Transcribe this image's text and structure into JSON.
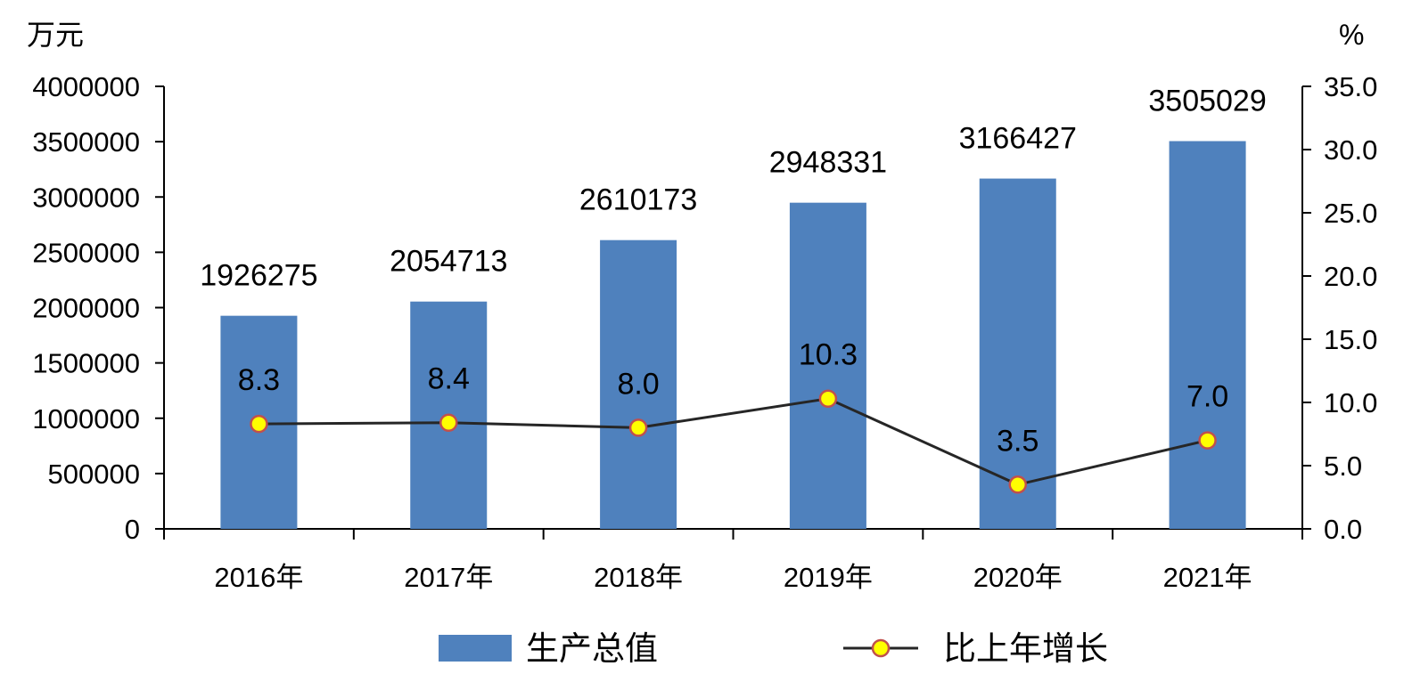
{
  "chart_data": {
    "type": "bar",
    "categories": [
      "2016年",
      "2017年",
      "2018年",
      "2019年",
      "2020年",
      "2021年"
    ],
    "series": [
      {
        "name": "生产总值",
        "type": "bar",
        "axis": "left",
        "values": [
          1926275,
          2054713,
          2610173,
          2948331,
          3166427,
          3505029
        ],
        "labels": [
          "1926275",
          "2054713",
          "2610173",
          "2948331",
          "3166427",
          "3505029"
        ],
        "color": "#4F81BD"
      },
      {
        "name": "比上年增长",
        "type": "line",
        "axis": "right",
        "values": [
          8.3,
          8.4,
          8.0,
          10.3,
          3.5,
          7.0
        ],
        "labels": [
          "8.3",
          "8.4",
          "8.0",
          "10.3",
          "3.5",
          "7.0"
        ],
        "line_color": "#262626",
        "marker_fill": "#FFFF00",
        "marker_edge": "#C0504D"
      }
    ],
    "y_left": {
      "unit": "万元",
      "ylim": [
        0,
        4000000
      ],
      "ticks": [
        "0",
        "500000",
        "1000000",
        "1500000",
        "2000000",
        "2500000",
        "3000000",
        "3500000",
        "4000000"
      ]
    },
    "y_right": {
      "unit": "%",
      "ylim": [
        0,
        35
      ],
      "ticks": [
        "0.0",
        "5.0",
        "10.0",
        "15.0",
        "20.0",
        "25.0",
        "30.0",
        "35.0"
      ]
    },
    "grid": false,
    "legend": "bottom"
  }
}
